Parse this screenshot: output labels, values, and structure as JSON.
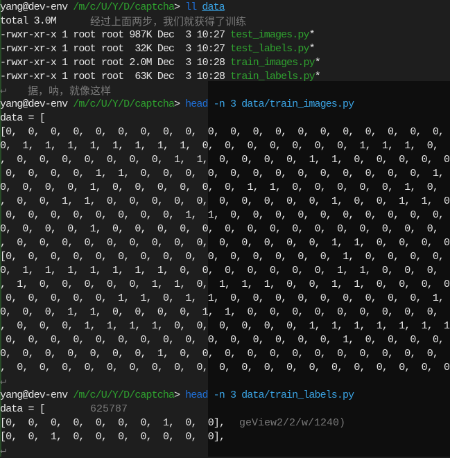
{
  "prompt": {
    "user_host": "yang@dev-env",
    "path": "/m/c/U/Y/D/captcha",
    "arrow": ">"
  },
  "cmd1": {
    "cmd": "ll",
    "arg": "data"
  },
  "ls_total": "total 3.0M",
  "ls": [
    {
      "meta": "-rwxr-xr-x 1 root root 987K Dec  3 10:27 ",
      "name": "test_images.py",
      "mark": "*"
    },
    {
      "meta": "-rwxr-xr-x 1 root root  32K Dec  3 10:27 ",
      "name": "test_labels.py",
      "mark": "*"
    },
    {
      "meta": "-rwxr-xr-x 1 root root 2.0M Dec  3 10:28 ",
      "name": "train_images.py",
      "mark": "*"
    },
    {
      "meta": "-rwxr-xr-x 1 root root  63K Dec  3 10:28 ",
      "name": "train_labels.py",
      "mark": "*"
    }
  ],
  "return_glyph": "↵",
  "cmd2": {
    "cmd": "head",
    "arg": " -n 3 data/train_images.py"
  },
  "cmd3": {
    "cmd": "head",
    "arg": " -n 3 data/train_labels.py"
  },
  "data_open": "data = [",
  "images": [
    "[0,  0,  0,  0,  0,  0,  0,  0,  0,  0,  0,  0,  0,  0,  0,  0,  0,  0,  0,  0,  0,  0",
    "0,  1,  1,  1,  1,  1,  1,  1,  1,  0,  0,  0,  0,  0,  0,  0,  1,  1,  1,  0,  0,  0,",
    ",  0,  0,  0,  0,  0,  0,  0,  1,  1,  0,  0,  0,  0,  1,  1,  0,  0,  0,  0,  0,  0,",
    " 0,  0,  0,  0,  1,  1,  0,  0,  0,  0,  0,  0,  0,  0,  0,  0,  0,  0,  0,  1,  1,  0",
    "0,  0,  0,  0,  1,  0,  0,  0,  0,  0,  0,  1,  1,  0,  0,  0,  0,  0,  1,  0,  0,  1,",
    ",  0,  0,  1,  1,  0,  0,  0,  0,  0,  0,  0,  0,  0,  0,  1,  0,  0,  1,  1,  0,  0,",
    " 0,  0,  0,  0,  0,  0,  0,  0,  1,  1,  0,  0,  0,  0,  0,  0,  0,  0,  0,  0,  0,  0",
    "0,  0,  0,  0,  1,  0,  0,  0,  0,  0,  0,  0,  0,  0,  0,  0,  0,  0,  0,  0,  1,  1,",
    ",  0,  0,  0,  0,  0,  0,  0,  0,  0,  0,  0,  0,  0,  0,  1,  1,  0,  0,  0,  0,  0],",
    "[0,  0,  0,  0,  0,  0,  0,  0,  0,  0,  0,  0,  0,  0,  0,  1,  0,  0,  0,  0,  0,  0",
    "0,  1,  1,  1,  1,  1,  1,  1,  0,  0,  0,  0,  0,  0,  0,  1,  1,  0,  0,  0,  0,  0,",
    ",  1,  0,  0,  0,  0,  0,  1,  1,  0,  1,  1,  1,  0,  0,  1,  1,  0,  0,  0,  0,  0,",
    " 0,  0,  0,  0,  0,  1,  1,  0,  1,  1,  0,  0,  0,  0,  0,  0,  0,  0,  0,  1,  1,  1",
    "0,  0,  0,  1,  1,  0,  0,  0,  0,  1,  1,  0,  0,  0,  0,  0,  0,  0,  0,  0,  0,  1,",
    ",  0,  0,  0,  1,  1,  1,  1,  0,  0,  0,  0,  0,  0,  1,  1,  1,  1,  1,  1,  1,  1,",
    " 0,  0,  0,  0,  0,  0,  0,  0,  0,  0,  0,  0,  0,  0,  0,  1,  0,  0,  0,  0,  0,  0",
    "0,  0,  0,  0,  0,  0,  0,  1,  0,  0,  0,  0,  0,  0,  0,  0,  0,  0,  0,  0,  0,  0,",
    ",  0,  0,  0,  0,  0,  0,  0,  0,  0,  0,  0,  0,  0,  0,  0,  0,  0,  0,  0,  0,  0],"
  ],
  "labels": [
    "[0,  0,  0,  0,  0,  0,  0,  1,  0,  0],",
    "[0,  0,  1,  0,  0,  0,  0,  0,  0,  0],"
  ],
  "ghost": {
    "cn1": "经过上面两步，我们就获得了训练",
    "cn2": "据，呐，就像这样",
    "num": "625787",
    "url": "geView2/2/w/1240)"
  }
}
